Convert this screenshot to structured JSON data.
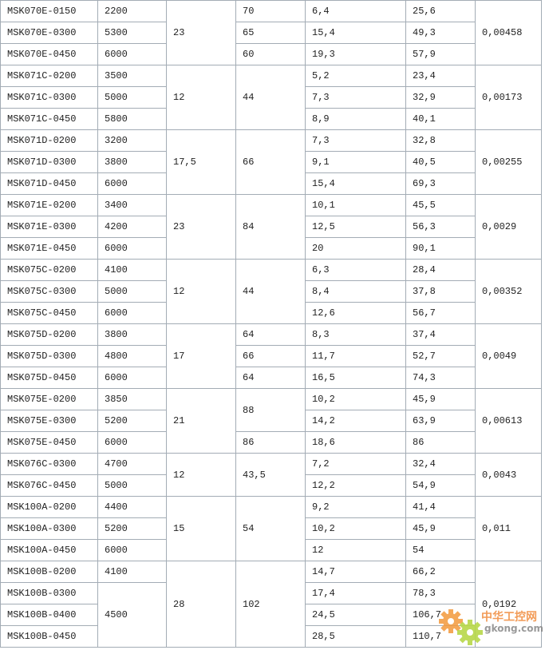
{
  "rows": [
    [
      {
        "t": "MSK070E-0150"
      },
      {
        "t": "2200"
      },
      {
        "t": "23",
        "rs": 3
      },
      {
        "t": "70"
      },
      {
        "t": "6,4"
      },
      {
        "t": "25,6"
      },
      {
        "t": "0,00458",
        "rs": 3
      }
    ],
    [
      {
        "t": "MSK070E-0300"
      },
      {
        "t": "5300"
      },
      {
        "t": "65"
      },
      {
        "t": "15,4"
      },
      {
        "t": "49,3"
      }
    ],
    [
      {
        "t": "MSK070E-0450"
      },
      {
        "t": "6000"
      },
      {
        "t": "60"
      },
      {
        "t": "19,3"
      },
      {
        "t": "57,9"
      }
    ],
    [
      {
        "t": "MSK071C-0200"
      },
      {
        "t": "3500"
      },
      {
        "t": "12",
        "rs": 3
      },
      {
        "t": "44",
        "rs": 3
      },
      {
        "t": "5,2"
      },
      {
        "t": "23,4"
      },
      {
        "t": "0,00173",
        "rs": 3
      }
    ],
    [
      {
        "t": "MSK071C-0300"
      },
      {
        "t": "5000"
      },
      {
        "t": "7,3"
      },
      {
        "t": "32,9"
      }
    ],
    [
      {
        "t": "MSK071C-0450"
      },
      {
        "t": "5800"
      },
      {
        "t": "8,9"
      },
      {
        "t": "40,1"
      }
    ],
    [
      {
        "t": "MSK071D-0200"
      },
      {
        "t": "3200"
      },
      {
        "t": "17,5",
        "rs": 3
      },
      {
        "t": "66",
        "rs": 3
      },
      {
        "t": "7,3"
      },
      {
        "t": "32,8"
      },
      {
        "t": "0,00255",
        "rs": 3
      }
    ],
    [
      {
        "t": "MSK071D-0300"
      },
      {
        "t": "3800"
      },
      {
        "t": "9,1"
      },
      {
        "t": "40,5"
      }
    ],
    [
      {
        "t": "MSK071D-0450"
      },
      {
        "t": "6000"
      },
      {
        "t": "15,4"
      },
      {
        "t": "69,3"
      }
    ],
    [
      {
        "t": "MSK071E-0200"
      },
      {
        "t": "3400"
      },
      {
        "t": "23",
        "rs": 3
      },
      {
        "t": "84",
        "rs": 3
      },
      {
        "t": "10,1"
      },
      {
        "t": "45,5"
      },
      {
        "t": "0,0029",
        "rs": 3
      }
    ],
    [
      {
        "t": "MSK071E-0300"
      },
      {
        "t": "4200"
      },
      {
        "t": "12,5"
      },
      {
        "t": "56,3"
      }
    ],
    [
      {
        "t": "MSK071E-0450"
      },
      {
        "t": "6000"
      },
      {
        "t": "20"
      },
      {
        "t": "90,1"
      }
    ],
    [
      {
        "t": "MSK075C-0200"
      },
      {
        "t": "4100"
      },
      {
        "t": "12",
        "rs": 3
      },
      {
        "t": "44",
        "rs": 3
      },
      {
        "t": "6,3"
      },
      {
        "t": "28,4"
      },
      {
        "t": "0,00352",
        "rs": 3
      }
    ],
    [
      {
        "t": "MSK075C-0300"
      },
      {
        "t": "5000"
      },
      {
        "t": "8,4"
      },
      {
        "t": "37,8"
      }
    ],
    [
      {
        "t": "MSK075C-0450"
      },
      {
        "t": "6000"
      },
      {
        "t": "12,6"
      },
      {
        "t": "56,7"
      }
    ],
    [
      {
        "t": "MSK075D-0200"
      },
      {
        "t": "3800"
      },
      {
        "t": "17",
        "rs": 3
      },
      {
        "t": "64"
      },
      {
        "t": "8,3"
      },
      {
        "t": "37,4"
      },
      {
        "t": "0,0049",
        "rs": 3
      }
    ],
    [
      {
        "t": "MSK075D-0300"
      },
      {
        "t": "4800"
      },
      {
        "t": "66"
      },
      {
        "t": "11,7"
      },
      {
        "t": "52,7"
      }
    ],
    [
      {
        "t": "MSK075D-0450"
      },
      {
        "t": "6000"
      },
      {
        "t": "64"
      },
      {
        "t": "16,5"
      },
      {
        "t": "74,3"
      }
    ],
    [
      {
        "t": "MSK075E-0200"
      },
      {
        "t": "3850"
      },
      {
        "t": "21",
        "rs": 3
      },
      {
        "t": "88",
        "rs": 2
      },
      {
        "t": "10,2"
      },
      {
        "t": "45,9"
      },
      {
        "t": "0,00613",
        "rs": 3
      }
    ],
    [
      {
        "t": "MSK075E-0300"
      },
      {
        "t": "5200"
      },
      {
        "t": "14,2"
      },
      {
        "t": "63,9"
      }
    ],
    [
      {
        "t": "MSK075E-0450"
      },
      {
        "t": "6000"
      },
      {
        "t": "86"
      },
      {
        "t": "18,6"
      },
      {
        "t": "86"
      }
    ],
    [
      {
        "t": "MSK076C-0300"
      },
      {
        "t": "4700"
      },
      {
        "t": "12",
        "rs": 2
      },
      {
        "t": "43,5",
        "rs": 2
      },
      {
        "t": "7,2"
      },
      {
        "t": "32,4"
      },
      {
        "t": "0,0043",
        "rs": 2
      }
    ],
    [
      {
        "t": "MSK076C-0450"
      },
      {
        "t": "5000"
      },
      {
        "t": "12,2"
      },
      {
        "t": "54,9"
      }
    ],
    [
      {
        "t": "MSK100A-0200"
      },
      {
        "t": "4400"
      },
      {
        "t": "15",
        "rs": 3
      },
      {
        "t": "54",
        "rs": 3
      },
      {
        "t": "9,2"
      },
      {
        "t": "41,4"
      },
      {
        "t": "0,011",
        "rs": 3
      }
    ],
    [
      {
        "t": "MSK100A-0300"
      },
      {
        "t": "5200"
      },
      {
        "t": "10,2"
      },
      {
        "t": "45,9"
      }
    ],
    [
      {
        "t": "MSK100A-0450"
      },
      {
        "t": "6000"
      },
      {
        "t": "12"
      },
      {
        "t": "54"
      }
    ],
    [
      {
        "t": "MSK100B-0200"
      },
      {
        "t": "4100"
      },
      {
        "t": "28",
        "rs": 4
      },
      {
        "t": "102",
        "rs": 4
      },
      {
        "t": "14,7"
      },
      {
        "t": "66,2"
      },
      {
        "t": "0,0192",
        "rs": 4
      }
    ],
    [
      {
        "t": "MSK100B-0300"
      },
      {
        "t": "4500",
        "rs": 3
      },
      {
        "t": "17,4"
      },
      {
        "t": "78,3"
      }
    ],
    [
      {
        "t": "MSK100B-0400"
      },
      {
        "t": "24,5"
      },
      {
        "t": "106,7"
      }
    ],
    [
      {
        "t": "MSK100B-0450"
      },
      {
        "t": "28,5"
      },
      {
        "t": "110,7"
      }
    ]
  ],
  "watermark": {
    "cn": "中华工控网",
    "en": "gkong.com",
    "colors": {
      "orange": "#f39a3c",
      "green": "#b8d84a"
    }
  }
}
